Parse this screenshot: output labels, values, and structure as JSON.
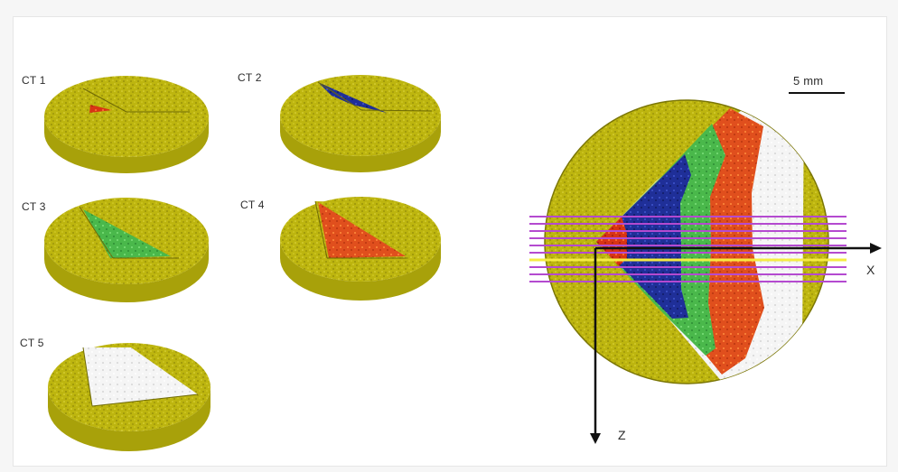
{
  "labels": {
    "ct1": "CT 1",
    "ct2": "CT 2",
    "ct3": "CT 3",
    "ct4": "CT 4",
    "ct5": "CT 5",
    "scale_bar": "5 mm",
    "x_axis": "X",
    "z_axis": "Z"
  },
  "colors": {
    "sample_yellow": "#b7b10c",
    "sample_dark": "#8f8a07",
    "ct1": "#cc2a18",
    "ct2": "#1d2f96",
    "ct3": "#47b847",
    "ct4": "#e04a1a",
    "ct5": "#f2f2f2",
    "scan_lines": "#b44ad0",
    "highlight_line": "#f4ec43",
    "axis": "#111111"
  }
}
